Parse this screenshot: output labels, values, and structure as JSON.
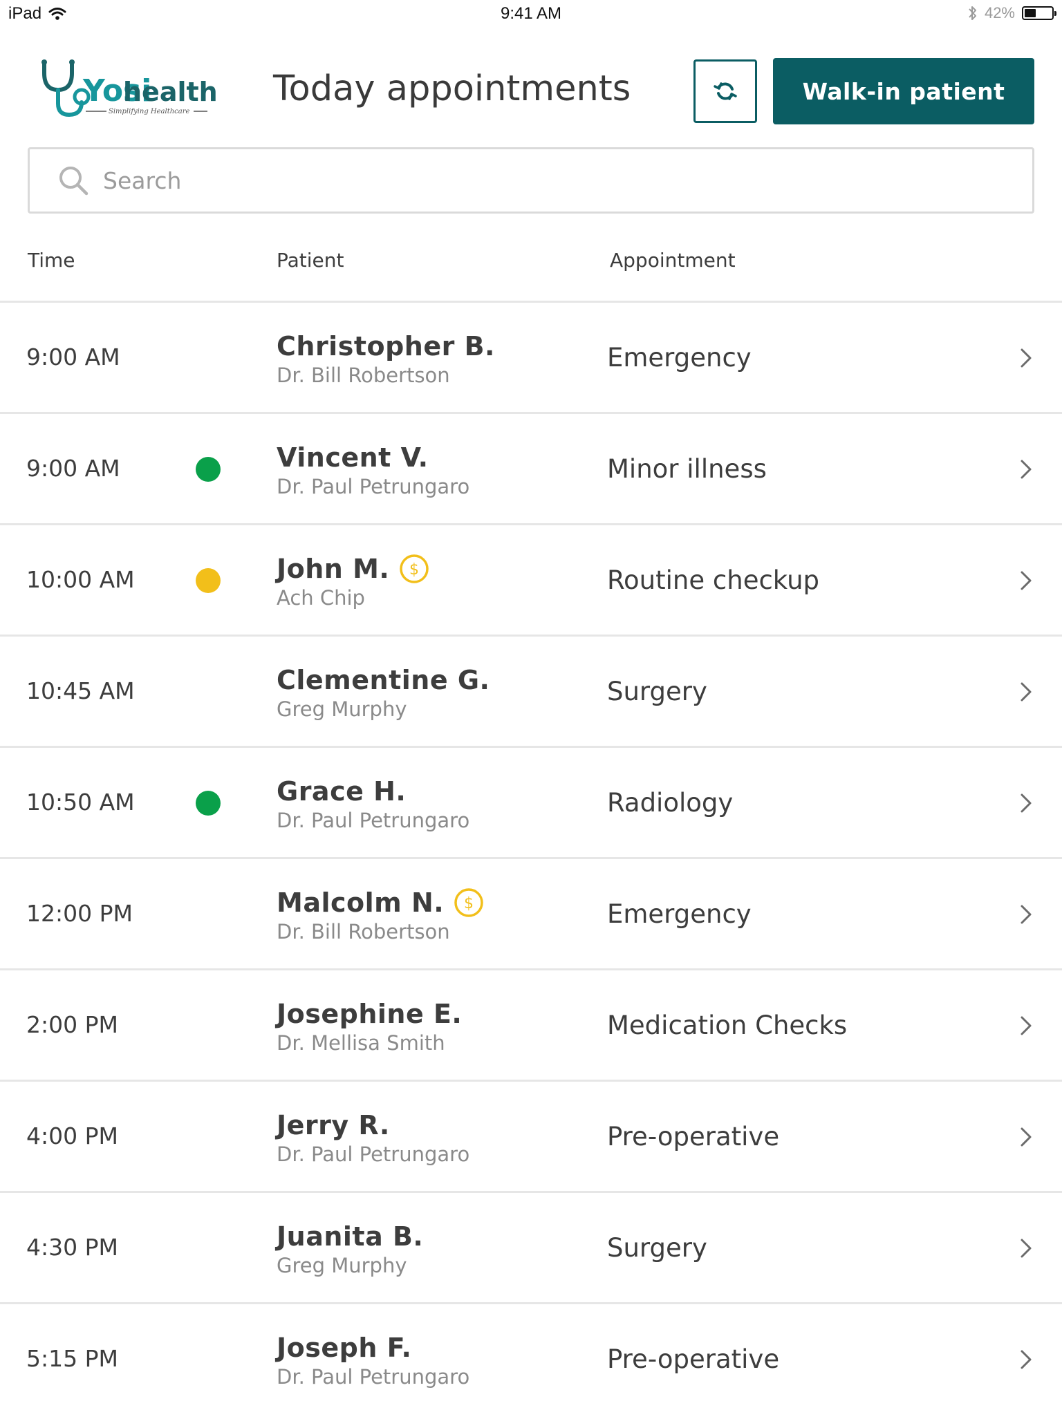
{
  "status_bar": {
    "device": "iPad",
    "time": "9:41 AM",
    "battery": "42%",
    "battery_level": 0.42,
    "icons": [
      "wifi-icon",
      "bluetooth-icon",
      "battery-icon"
    ]
  },
  "header": {
    "logo": {
      "brand": "Yosi",
      "word": "health",
      "tagline": "Simplifying Healthcare"
    },
    "title": "Today appointments",
    "refresh_icon": "refresh-icon",
    "walkin_label": "Walk-in patient"
  },
  "search": {
    "placeholder": "Search",
    "value": ""
  },
  "table": {
    "columns": {
      "time": "Time",
      "patient": "Patient",
      "appointment": "Appointment"
    }
  },
  "colors": {
    "primary": "#0b5d63",
    "status_green": "#0aa04a",
    "status_yellow": "#f2bf1a",
    "payment": "#f2bf1a",
    "logo_teal": "#17969c",
    "logo_dark": "#1b6468"
  },
  "appointments": [
    {
      "time": "9:00 AM",
      "status": "",
      "name": "Christopher B.",
      "payment": false,
      "doctor": "Dr. Bill Robertson",
      "type": "Emergency"
    },
    {
      "time": "9:00 AM",
      "status": "green",
      "name": "Vincent V.",
      "payment": false,
      "doctor": "Dr. Paul Petrungaro",
      "type": "Minor illness"
    },
    {
      "time": "10:00 AM",
      "status": "yellow",
      "name": "John M.",
      "payment": true,
      "doctor": "Ach Chip",
      "type": "Routine checkup"
    },
    {
      "time": "10:45 AM",
      "status": "",
      "name": "Clementine G.",
      "payment": false,
      "doctor": "Greg Murphy",
      "type": "Surgery"
    },
    {
      "time": "10:50 AM",
      "status": "green",
      "name": "Grace H.",
      "payment": false,
      "doctor": "Dr. Paul Petrungaro",
      "type": "Radiology"
    },
    {
      "time": "12:00 PM",
      "status": "",
      "name": "Malcolm N.",
      "payment": true,
      "doctor": "Dr. Bill Robertson",
      "type": "Emergency"
    },
    {
      "time": "2:00 PM",
      "status": "",
      "name": "Josephine E.",
      "payment": false,
      "doctor": "Dr. Mellisa Smith",
      "type": "Medication Checks"
    },
    {
      "time": "4:00 PM",
      "status": "",
      "name": "Jerry R.",
      "payment": false,
      "doctor": "Dr. Paul Petrungaro",
      "type": "Pre-operative"
    },
    {
      "time": "4:30 PM",
      "status": "",
      "name": "Juanita B.",
      "payment": false,
      "doctor": "Greg Murphy",
      "type": "Surgery"
    },
    {
      "time": "5:15 PM",
      "status": "",
      "name": "Joseph F.",
      "payment": false,
      "doctor": "Dr. Paul Petrungaro",
      "type": "Pre-operative"
    }
  ]
}
